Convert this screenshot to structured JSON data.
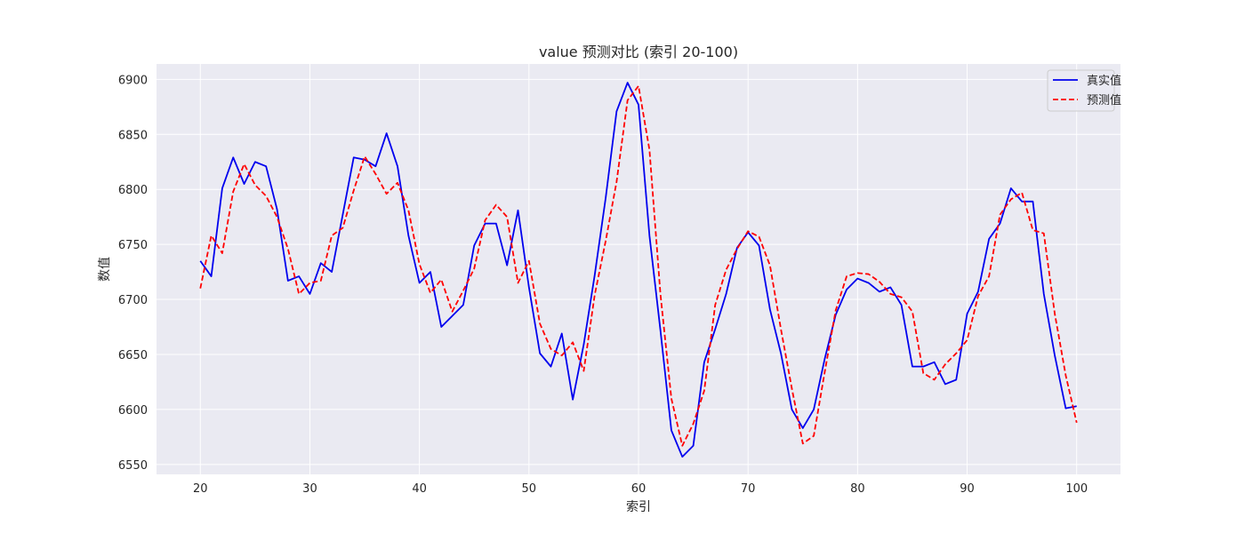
{
  "chart_data": {
    "type": "line",
    "title": "value 预测对比 (索引 20-100)",
    "xlabel": "索引",
    "ylabel": "数值",
    "xlim": [
      16,
      104
    ],
    "ylim": [
      6541,
      6914
    ],
    "xticks": [
      20,
      30,
      40,
      50,
      60,
      70,
      80,
      90,
      100
    ],
    "yticks": [
      6550,
      6600,
      6650,
      6700,
      6750,
      6800,
      6850,
      6900
    ],
    "grid": true,
    "legend_position": "top-right",
    "x": [
      20,
      21,
      22,
      23,
      24,
      25,
      26,
      27,
      28,
      29,
      30,
      31,
      32,
      33,
      34,
      35,
      36,
      37,
      38,
      39,
      40,
      41,
      42,
      43,
      44,
      45,
      46,
      47,
      48,
      49,
      50,
      51,
      52,
      53,
      54,
      55,
      56,
      57,
      58,
      59,
      60,
      61,
      62,
      63,
      64,
      65,
      66,
      67,
      68,
      69,
      70,
      71,
      72,
      73,
      74,
      75,
      76,
      77,
      78,
      79,
      80,
      81,
      82,
      83,
      84,
      85,
      86,
      87,
      88,
      89,
      90,
      91,
      92,
      93,
      94,
      95,
      96,
      97,
      98,
      99,
      100
    ],
    "series": [
      {
        "name": "真实值",
        "color": "#0000ee",
        "style": "solid",
        "values": [
          6735,
          6721,
          6801,
          6829,
          6805,
          6825,
          6821,
          6782,
          6717,
          6721,
          6705,
          6733,
          6725,
          6777,
          6829,
          6827,
          6821,
          6851,
          6821,
          6758,
          6715,
          6725,
          6675,
          6685,
          6695,
          6749,
          6769,
          6769,
          6731,
          6781,
          6711,
          6651,
          6639,
          6669,
          6609,
          6659,
          6722,
          6792,
          6871,
          6897,
          6877,
          6758,
          6672,
          6581,
          6557,
          6567,
          6643,
          6673,
          6705,
          6747,
          6761,
          6749,
          6691,
          6651,
          6600,
          6583,
          6600,
          6646,
          6686,
          6709,
          6719,
          6715,
          6707,
          6711,
          6695,
          6639,
          6639,
          6643,
          6623,
          6627,
          6687,
          6707,
          6755,
          6769,
          6801,
          6789,
          6789,
          6705,
          6649,
          6601,
          6603
        ]
      },
      {
        "name": "预测值",
        "color": "#ff0000",
        "style": "dashed",
        "values": [
          6710,
          6758,
          6742,
          6798,
          6823,
          6804,
          6794,
          6775,
          6746,
          6705,
          6715,
          6717,
          6758,
          6765,
          6799,
          6830,
          6814,
          6796,
          6806,
          6781,
          6732,
          6706,
          6718,
          6689,
          6708,
          6728,
          6772,
          6786,
          6775,
          6715,
          6735,
          6678,
          6655,
          6649,
          6661,
          6635,
          6704,
          6753,
          6807,
          6881,
          6894,
          6836,
          6705,
          6610,
          6567,
          6587,
          6617,
          6695,
          6727,
          6746,
          6762,
          6757,
          6731,
          6673,
          6619,
          6569,
          6576,
          6634,
          6690,
          6721,
          6724,
          6723,
          6716,
          6705,
          6702,
          6689,
          6633,
          6627,
          6641,
          6651,
          6663,
          6703,
          6721,
          6777,
          6791,
          6797,
          6763,
          6760,
          6687,
          6631,
          6588
        ]
      }
    ]
  }
}
